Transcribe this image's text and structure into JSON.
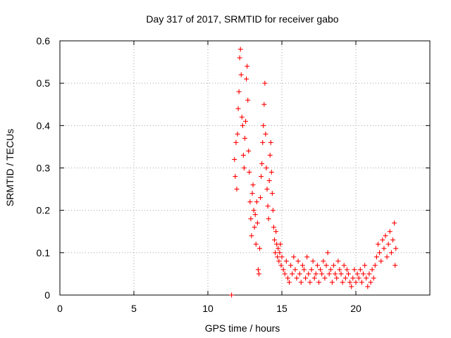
{
  "chart_data": {
    "type": "scatter",
    "title": "Day 317 of 2017, SRMTID for receiver gabo",
    "xlabel": "GPS time / hours",
    "ylabel": "SRMTID / TECUs",
    "xlim": [
      0,
      25
    ],
    "ylim": [
      0,
      0.6
    ],
    "xticks": [
      0,
      5,
      10,
      15,
      20
    ],
    "yticks": [
      0,
      0.1,
      0.2,
      0.3,
      0.4,
      0.5,
      0.6
    ],
    "ytick_labels": [
      "0",
      "0.1",
      "0.2",
      "0.3",
      "0.4",
      "0.5",
      "0.6"
    ],
    "grid": true,
    "marker": "+",
    "color": "#ff0000",
    "series": [
      {
        "name": "SRMTID",
        "points": [
          [
            11.6,
            0.0
          ],
          [
            11.8,
            0.32
          ],
          [
            11.85,
            0.28
          ],
          [
            11.9,
            0.36
          ],
          [
            11.95,
            0.25
          ],
          [
            12.0,
            0.38
          ],
          [
            12.05,
            0.44
          ],
          [
            12.1,
            0.48
          ],
          [
            12.15,
            0.56
          ],
          [
            12.2,
            0.58
          ],
          [
            12.25,
            0.52
          ],
          [
            12.3,
            0.42
          ],
          [
            12.35,
            0.4
          ],
          [
            12.4,
            0.33
          ],
          [
            12.45,
            0.3
          ],
          [
            12.5,
            0.37
          ],
          [
            12.55,
            0.41
          ],
          [
            12.6,
            0.51
          ],
          [
            12.65,
            0.54
          ],
          [
            12.7,
            0.46
          ],
          [
            12.75,
            0.34
          ],
          [
            12.8,
            0.29
          ],
          [
            12.85,
            0.22
          ],
          [
            12.9,
            0.18
          ],
          [
            12.95,
            0.14
          ],
          [
            13.0,
            0.24
          ],
          [
            13.05,
            0.26
          ],
          [
            13.1,
            0.2
          ],
          [
            13.15,
            0.16
          ],
          [
            13.2,
            0.19
          ],
          [
            13.25,
            0.12
          ],
          [
            13.3,
            0.22
          ],
          [
            13.35,
            0.17
          ],
          [
            13.4,
            0.06
          ],
          [
            13.45,
            0.05
          ],
          [
            13.5,
            0.11
          ],
          [
            13.55,
            0.23
          ],
          [
            13.6,
            0.28
          ],
          [
            13.65,
            0.31
          ],
          [
            13.7,
            0.36
          ],
          [
            13.75,
            0.4
          ],
          [
            13.8,
            0.45
          ],
          [
            13.85,
            0.5
          ],
          [
            13.9,
            0.38
          ],
          [
            13.95,
            0.3
          ],
          [
            14.0,
            0.25
          ],
          [
            14.05,
            0.21
          ],
          [
            14.1,
            0.18
          ],
          [
            14.15,
            0.27
          ],
          [
            14.2,
            0.33
          ],
          [
            14.25,
            0.36
          ],
          [
            14.3,
            0.29
          ],
          [
            14.35,
            0.24
          ],
          [
            14.4,
            0.2
          ],
          [
            14.45,
            0.16
          ],
          [
            14.5,
            0.13
          ],
          [
            14.55,
            0.1
          ],
          [
            14.6,
            0.15
          ],
          [
            14.65,
            0.12
          ],
          [
            14.7,
            0.09
          ],
          [
            14.75,
            0.11
          ],
          [
            14.8,
            0.08
          ],
          [
            14.85,
            0.1
          ],
          [
            14.9,
            0.12
          ],
          [
            14.95,
            0.07
          ],
          [
            15.0,
            0.09
          ],
          [
            15.1,
            0.06
          ],
          [
            15.2,
            0.05
          ],
          [
            15.3,
            0.08
          ],
          [
            15.4,
            0.04
          ],
          [
            15.5,
            0.03
          ],
          [
            15.6,
            0.07
          ],
          [
            15.7,
            0.05
          ],
          [
            15.8,
            0.09
          ],
          [
            15.9,
            0.06
          ],
          [
            16.0,
            0.04
          ],
          [
            16.1,
            0.08
          ],
          [
            16.2,
            0.05
          ],
          [
            16.3,
            0.03
          ],
          [
            16.4,
            0.07
          ],
          [
            16.5,
            0.06
          ],
          [
            16.6,
            0.04
          ],
          [
            16.7,
            0.09
          ],
          [
            16.8,
            0.05
          ],
          [
            16.9,
            0.03
          ],
          [
            17.0,
            0.06
          ],
          [
            17.1,
            0.08
          ],
          [
            17.2,
            0.04
          ],
          [
            17.3,
            0.05
          ],
          [
            17.4,
            0.07
          ],
          [
            17.5,
            0.03
          ],
          [
            17.6,
            0.06
          ],
          [
            17.7,
            0.05
          ],
          [
            17.8,
            0.08
          ],
          [
            17.9,
            0.04
          ],
          [
            18.0,
            0.07
          ],
          [
            18.1,
            0.1
          ],
          [
            18.2,
            0.05
          ],
          [
            18.3,
            0.06
          ],
          [
            18.4,
            0.03
          ],
          [
            18.5,
            0.07
          ],
          [
            18.6,
            0.05
          ],
          [
            18.7,
            0.04
          ],
          [
            18.8,
            0.08
          ],
          [
            18.9,
            0.06
          ],
          [
            19.0,
            0.05
          ],
          [
            19.1,
            0.03
          ],
          [
            19.2,
            0.07
          ],
          [
            19.3,
            0.04
          ],
          [
            19.4,
            0.06
          ],
          [
            19.5,
            0.05
          ],
          [
            19.6,
            0.03
          ],
          [
            19.7,
            0.02
          ],
          [
            19.8,
            0.04
          ],
          [
            19.9,
            0.06
          ],
          [
            20.0,
            0.03
          ],
          [
            20.1,
            0.05
          ],
          [
            20.2,
            0.04
          ],
          [
            20.3,
            0.06
          ],
          [
            20.4,
            0.03
          ],
          [
            20.5,
            0.05
          ],
          [
            20.6,
            0.07
          ],
          [
            20.7,
            0.04
          ],
          [
            20.8,
            0.02
          ],
          [
            20.9,
            0.05
          ],
          [
            21.0,
            0.03
          ],
          [
            21.1,
            0.06
          ],
          [
            21.2,
            0.04
          ],
          [
            21.3,
            0.07
          ],
          [
            21.4,
            0.09
          ],
          [
            21.5,
            0.12
          ],
          [
            21.6,
            0.1
          ],
          [
            21.7,
            0.08
          ],
          [
            21.8,
            0.13
          ],
          [
            21.9,
            0.11
          ],
          [
            22.0,
            0.14
          ],
          [
            22.1,
            0.09
          ],
          [
            22.2,
            0.12
          ],
          [
            22.3,
            0.15
          ],
          [
            22.4,
            0.1
          ],
          [
            22.5,
            0.13
          ],
          [
            22.6,
            0.17
          ],
          [
            22.65,
            0.07
          ],
          [
            22.7,
            0.11
          ]
        ]
      }
    ]
  }
}
